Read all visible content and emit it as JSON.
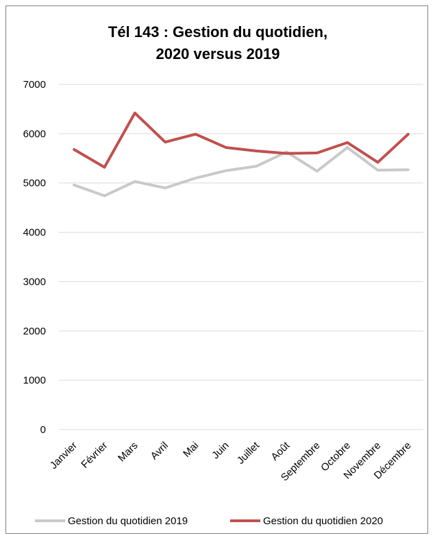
{
  "chart_data": {
    "type": "line",
    "title": [
      "Tél 143 :  Gestion du quotidien,",
      "2020 versus 2019"
    ],
    "categories": [
      "Janvier",
      "Février",
      "Mars",
      "Avril",
      "Mai",
      "Juin",
      "Juillet",
      "Août",
      "Septembre",
      "Octobre",
      "Novembre",
      "Décembre"
    ],
    "series": [
      {
        "name": "Gestion du quotidien 2019",
        "color": "#c9c9c9",
        "values": [
          4960,
          4740,
          5030,
          4900,
          5100,
          5250,
          5340,
          5630,
          5240,
          5720,
          5260,
          5270
        ]
      },
      {
        "name": "Gestion du quotidien 2020",
        "color": "#c0504d",
        "values": [
          5680,
          5320,
          6420,
          5830,
          5990,
          5720,
          5650,
          5600,
          5610,
          5820,
          5420,
          5990
        ]
      }
    ],
    "ylim": [
      0,
      7000
    ],
    "yticks": [
      "0",
      "1000",
      "2000",
      "3000",
      "4000",
      "5000",
      "6000",
      "7000"
    ],
    "grid": true,
    "legend_position": "bottom"
  }
}
